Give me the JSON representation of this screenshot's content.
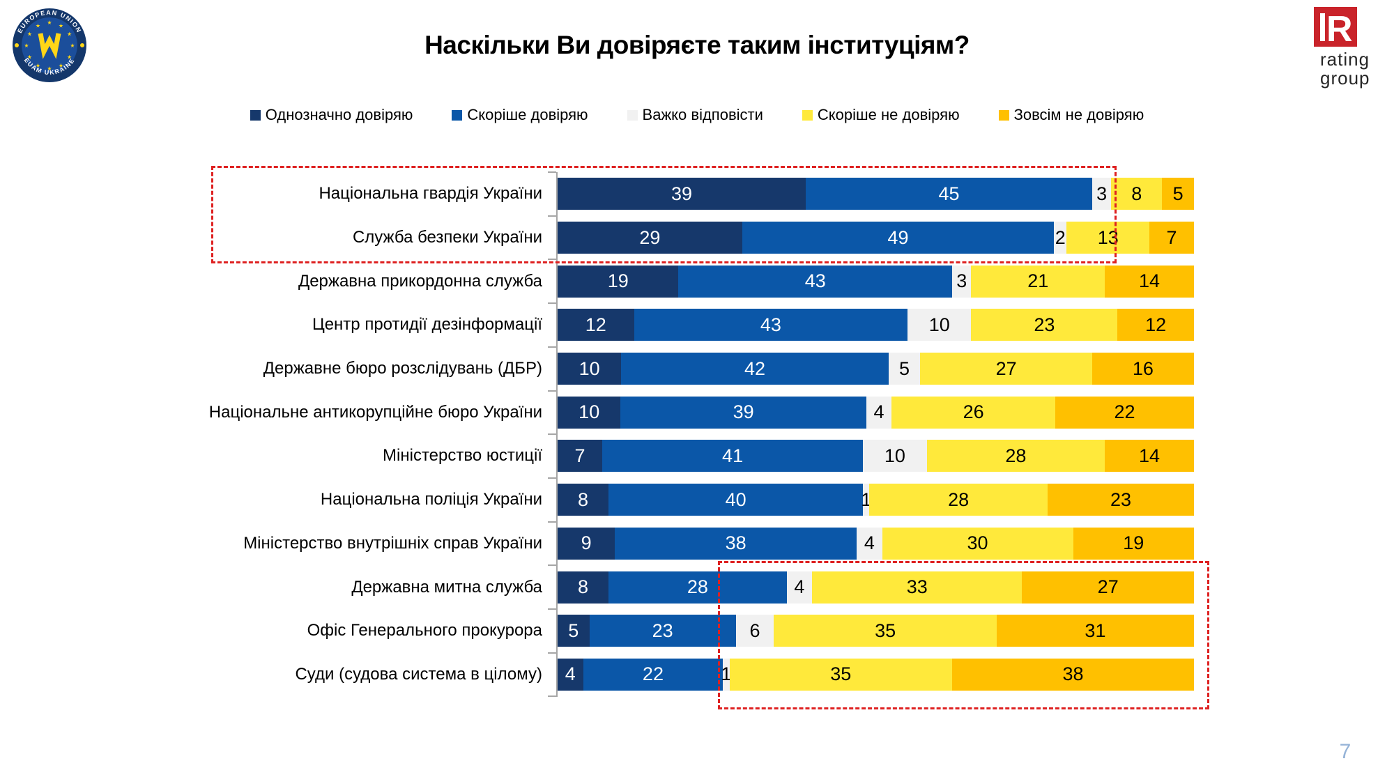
{
  "page": {
    "title": "Наскільки Ви довіряєте таким інституціям?",
    "page_number": "7"
  },
  "logos": {
    "euam": {
      "top_text": "EUROPEAN UNION",
      "bottom_text": "EUAM UKRAINE"
    },
    "rating": {
      "letter": "R",
      "line1": "rating",
      "line2": "group"
    }
  },
  "colors": {
    "strong_trust_navy": "#16386B",
    "rather_trust_blue": "#0B57A8",
    "hard_to_say_gray": "#F1F1F1",
    "rather_distrust_yellow": "#FFE93B",
    "full_distrust_orange": "#FFC000",
    "highlight_red": "#DE2121",
    "axis_gray": "#A6A6A6",
    "page_number_blue": "#95B3D7",
    "rating_logo_red": "#C9232A"
  },
  "chart_data": {
    "type": "bar",
    "orientation": "horizontal_stacked",
    "title": "Наскільки Ви довіряєте таким інституціям?",
    "unit": "percent",
    "xlim": [
      0,
      100
    ],
    "legend_position": "top",
    "grid": false,
    "categories": [
      "Національна гвардія України",
      "Служба безпеки України",
      "Державна прикордонна служба",
      "Центр протидії дезінформації",
      "Державне бюро розслідувань (ДБР)",
      "Національне антикорупційне бюро України",
      "Міністерство юстиції",
      "Національна поліція України",
      "Міністерство внутрішніх справ України",
      "Державна митна служба",
      "Офіс Генерального прокурора",
      "Суди (судова система в цілому)"
    ],
    "series": [
      {
        "name": "Однозначно довіряю",
        "color": "#16386B",
        "values": [
          39,
          29,
          19,
          12,
          10,
          10,
          7,
          8,
          9,
          8,
          5,
          4
        ]
      },
      {
        "name": "Скоріше довіряю",
        "color": "#0B57A8",
        "values": [
          45,
          49,
          43,
          43,
          42,
          39,
          41,
          40,
          38,
          28,
          23,
          22
        ]
      },
      {
        "name": "Важко відповісти",
        "color": "#F1F1F1",
        "values": [
          3,
          2,
          3,
          10,
          5,
          4,
          10,
          1,
          4,
          4,
          6,
          1
        ]
      },
      {
        "name": "Скоріше не довіряю",
        "color": "#FFE93B",
        "values": [
          8,
          13,
          21,
          23,
          27,
          26,
          28,
          28,
          30,
          33,
          35,
          35
        ]
      },
      {
        "name": "Зовсім не довіряю",
        "color": "#FFC000",
        "values": [
          5,
          7,
          14,
          12,
          16,
          22,
          14,
          23,
          19,
          27,
          31,
          38
        ]
      }
    ],
    "highlights": [
      {
        "style": "red-dashed-box",
        "description": "box around the two most trusted institutions",
        "categories": [
          "Національна гвардія України",
          "Служба безпеки України"
        ]
      },
      {
        "style": "red-dashed-box",
        "description": "box around the distrust segments of the three least trusted institutions",
        "categories": [
          "Державна митна служба",
          "Офіс Генерального прокурора",
          "Суди (судова система в цілому)"
        ]
      }
    ]
  }
}
